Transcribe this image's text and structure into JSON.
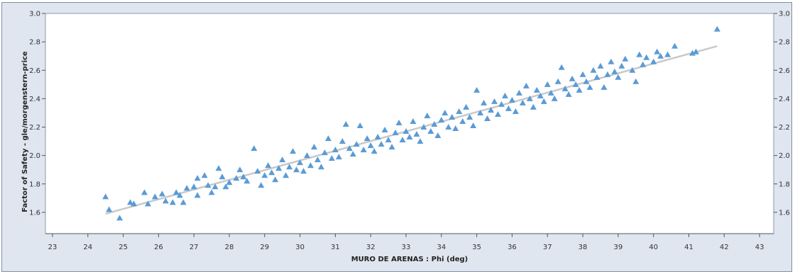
{
  "chart_data": {
    "type": "scatter",
    "title": "",
    "xlabel": "MURO DE ARENAS : Phi (deg)",
    "ylabel": "Factor of Safety - gle/morgenstern-price",
    "xlim": [
      22.8,
      43.4
    ],
    "ylim": [
      1.45,
      3.0
    ],
    "x_ticks": [
      "23",
      "24",
      "25",
      "26",
      "27",
      "28",
      "29",
      "30",
      "31",
      "32",
      "33",
      "34",
      "35",
      "36",
      "37",
      "38",
      "39",
      "40",
      "41",
      "42",
      "43"
    ],
    "y_ticks": [
      "1.6",
      "1.8",
      "2.0",
      "2.2",
      "2.4",
      "2.6",
      "2.8",
      "3.0"
    ],
    "grid": false,
    "marker": "triangle",
    "colors": {
      "points": "#5b9bd5",
      "trend": "#c9c9c9",
      "plot_bg": "#ffffff",
      "frame": "#dfe6ef"
    },
    "trendline": {
      "x": [
        24.5,
        41.8
      ],
      "y": [
        1.59,
        2.77
      ]
    },
    "series": [
      {
        "points": [
          [
            24.5,
            1.71
          ],
          [
            24.6,
            1.62
          ],
          [
            24.9,
            1.56
          ],
          [
            25.2,
            1.67
          ],
          [
            25.3,
            1.66
          ],
          [
            25.6,
            1.74
          ],
          [
            25.7,
            1.66
          ],
          [
            25.9,
            1.71
          ],
          [
            26.1,
            1.73
          ],
          [
            26.2,
            1.68
          ],
          [
            26.4,
            1.67
          ],
          [
            26.5,
            1.74
          ],
          [
            26.6,
            1.72
          ],
          [
            26.7,
            1.67
          ],
          [
            26.8,
            1.77
          ],
          [
            27.0,
            1.78
          ],
          [
            27.1,
            1.84
          ],
          [
            27.1,
            1.72
          ],
          [
            27.3,
            1.86
          ],
          [
            27.4,
            1.79
          ],
          [
            27.5,
            1.74
          ],
          [
            27.6,
            1.78
          ],
          [
            27.7,
            1.91
          ],
          [
            27.8,
            1.85
          ],
          [
            27.9,
            1.78
          ],
          [
            28.0,
            1.81
          ],
          [
            28.2,
            1.84
          ],
          [
            28.3,
            1.9
          ],
          [
            28.4,
            1.85
          ],
          [
            28.5,
            1.82
          ],
          [
            28.7,
            2.05
          ],
          [
            28.8,
            1.89
          ],
          [
            28.9,
            1.79
          ],
          [
            29.0,
            1.86
          ],
          [
            29.1,
            1.93
          ],
          [
            29.2,
            1.88
          ],
          [
            29.3,
            1.83
          ],
          [
            29.4,
            1.91
          ],
          [
            29.5,
            1.97
          ],
          [
            29.6,
            1.86
          ],
          [
            29.7,
            1.92
          ],
          [
            29.8,
            2.03
          ],
          [
            29.9,
            1.9
          ],
          [
            30.0,
            1.95
          ],
          [
            30.1,
            1.89
          ],
          [
            30.2,
            2.0
          ],
          [
            30.3,
            1.93
          ],
          [
            30.4,
            2.06
          ],
          [
            30.5,
            1.97
          ],
          [
            30.6,
            1.92
          ],
          [
            30.7,
            2.02
          ],
          [
            30.8,
            2.12
          ],
          [
            30.9,
            1.98
          ],
          [
            31.0,
            2.04
          ],
          [
            31.1,
            1.99
          ],
          [
            31.2,
            2.1
          ],
          [
            31.3,
            2.22
          ],
          [
            31.4,
            2.05
          ],
          [
            31.5,
            2.01
          ],
          [
            31.6,
            2.08
          ],
          [
            31.7,
            2.21
          ],
          [
            31.8,
            2.04
          ],
          [
            31.9,
            2.12
          ],
          [
            32.0,
            2.07
          ],
          [
            32.1,
            2.03
          ],
          [
            32.2,
            2.13
          ],
          [
            32.3,
            2.08
          ],
          [
            32.4,
            2.18
          ],
          [
            32.5,
            2.11
          ],
          [
            32.6,
            2.06
          ],
          [
            32.7,
            2.16
          ],
          [
            32.8,
            2.23
          ],
          [
            32.9,
            2.11
          ],
          [
            33.0,
            2.17
          ],
          [
            33.1,
            2.13
          ],
          [
            33.2,
            2.24
          ],
          [
            33.3,
            2.15
          ],
          [
            33.4,
            2.1
          ],
          [
            33.5,
            2.2
          ],
          [
            33.6,
            2.28
          ],
          [
            33.7,
            2.17
          ],
          [
            33.8,
            2.22
          ],
          [
            33.9,
            2.14
          ],
          [
            34.0,
            2.25
          ],
          [
            34.1,
            2.3
          ],
          [
            34.2,
            2.2
          ],
          [
            34.3,
            2.27
          ],
          [
            34.4,
            2.19
          ],
          [
            34.5,
            2.31
          ],
          [
            34.6,
            2.24
          ],
          [
            34.7,
            2.34
          ],
          [
            34.8,
            2.27
          ],
          [
            34.9,
            2.21
          ],
          [
            35.0,
            2.46
          ],
          [
            35.1,
            2.3
          ],
          [
            35.2,
            2.37
          ],
          [
            35.3,
            2.26
          ],
          [
            35.4,
            2.32
          ],
          [
            35.5,
            2.38
          ],
          [
            35.6,
            2.29
          ],
          [
            35.7,
            2.36
          ],
          [
            35.8,
            2.42
          ],
          [
            35.9,
            2.33
          ],
          [
            36.0,
            2.39
          ],
          [
            36.1,
            2.31
          ],
          [
            36.2,
            2.44
          ],
          [
            36.3,
            2.37
          ],
          [
            36.4,
            2.49
          ],
          [
            36.5,
            2.4
          ],
          [
            36.6,
            2.34
          ],
          [
            36.7,
            2.46
          ],
          [
            36.8,
            2.42
          ],
          [
            36.9,
            2.38
          ],
          [
            37.0,
            2.5
          ],
          [
            37.1,
            2.44
          ],
          [
            37.2,
            2.4
          ],
          [
            37.3,
            2.52
          ],
          [
            37.4,
            2.62
          ],
          [
            37.5,
            2.47
          ],
          [
            37.6,
            2.43
          ],
          [
            37.7,
            2.54
          ],
          [
            37.8,
            2.5
          ],
          [
            37.9,
            2.46
          ],
          [
            38.0,
            2.57
          ],
          [
            38.1,
            2.52
          ],
          [
            38.2,
            2.48
          ],
          [
            38.3,
            2.6
          ],
          [
            38.4,
            2.55
          ],
          [
            38.5,
            2.63
          ],
          [
            38.6,
            2.48
          ],
          [
            38.7,
            2.57
          ],
          [
            38.8,
            2.66
          ],
          [
            38.9,
            2.59
          ],
          [
            39.0,
            2.55
          ],
          [
            39.1,
            2.63
          ],
          [
            39.2,
            2.68
          ],
          [
            39.4,
            2.6
          ],
          [
            39.5,
            2.52
          ],
          [
            39.6,
            2.71
          ],
          [
            39.7,
            2.64
          ],
          [
            39.8,
            2.69
          ],
          [
            40.0,
            2.66
          ],
          [
            40.1,
            2.73
          ],
          [
            40.2,
            2.7
          ],
          [
            40.4,
            2.71
          ],
          [
            40.6,
            2.77
          ],
          [
            41.1,
            2.72
          ],
          [
            41.2,
            2.73
          ],
          [
            41.8,
            2.89
          ]
        ]
      }
    ]
  }
}
